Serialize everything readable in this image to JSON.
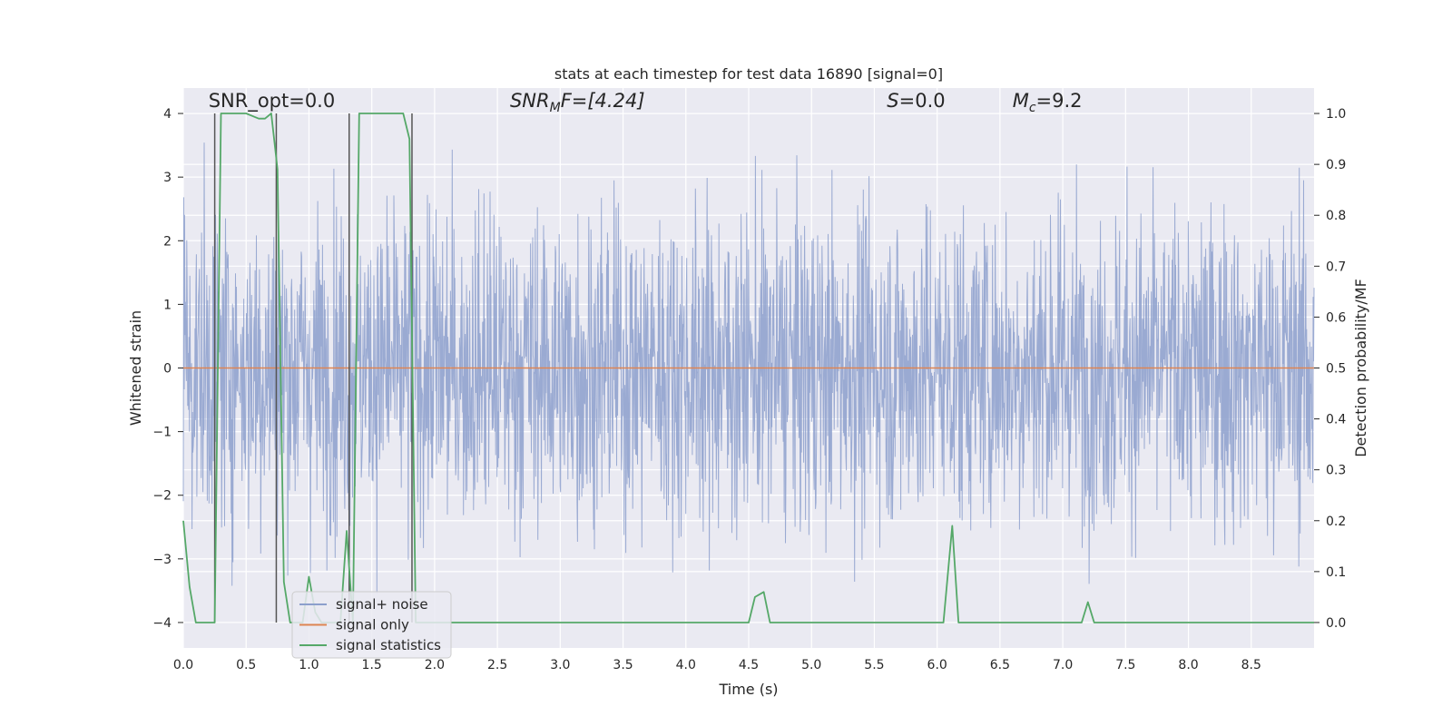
{
  "chart_data": {
    "type": "line",
    "title": "stats at each timestep for test data 16890 [signal=0]",
    "xlabel": "Time (s)",
    "ylabel": "Whitened strain",
    "y2label": "Detection probability/MF",
    "xlim": [
      0.0,
      9.0
    ],
    "ylim": [
      -4.4,
      4.4
    ],
    "y2lim": [
      -0.05,
      1.05
    ],
    "x_ticks": [
      "0.0",
      "0.5",
      "1.0",
      "1.5",
      "2.0",
      "2.5",
      "3.0",
      "3.5",
      "4.0",
      "4.5",
      "5.0",
      "5.5",
      "6.0",
      "6.5",
      "7.0",
      "7.5",
      "8.0",
      "8.5"
    ],
    "y_ticks": [
      "4",
      "3",
      "2",
      "1",
      "0",
      "−1",
      "−2",
      "−3",
      "−4"
    ],
    "y2_ticks": [
      "1.0",
      "0.9",
      "0.8",
      "0.7",
      "0.6",
      "0.5",
      "0.4",
      "0.3",
      "0.2",
      "0.1",
      "0.0"
    ],
    "grid": true,
    "legend_position": "lower-left",
    "annotations": {
      "snr_opt": "SNR_opt=0.0",
      "snr_mf_sym": "SNR",
      "snr_mf_sub": "M",
      "snr_mf_rest": "F=[4.24]",
      "s_sym": "S",
      "s_rest": "=0.0",
      "mc_sym": "M",
      "mc_sub": "c",
      "mc_rest": "=9.2"
    },
    "colors": {
      "background": "#eaeaf2",
      "grid": "#ffffff",
      "noise": "#8c9fcc",
      "signal_only": "#dd8452",
      "statistics": "#55a868",
      "vlines": "#555555"
    },
    "series": [
      {
        "name": "signal+ noise",
        "axis": "left",
        "style": "dense-noise",
        "band_sigma": 1.0,
        "typical_peak_abs": 2.4,
        "max_abs": 4.0
      },
      {
        "name": "signal only",
        "axis": "left",
        "x": [
          0.0,
          9.0
        ],
        "y": [
          0.0,
          0.0
        ]
      },
      {
        "name": "signal statistics",
        "axis": "right",
        "x": [
          0.0,
          0.05,
          0.1,
          0.2,
          0.25,
          0.3,
          0.5,
          0.6,
          0.65,
          0.7,
          0.75,
          0.8,
          0.85,
          0.9,
          0.95,
          1.0,
          1.05,
          1.1,
          1.25,
          1.3,
          1.35,
          1.4,
          1.75,
          1.8,
          1.85,
          1.9,
          4.5,
          4.55,
          4.62,
          4.67,
          6.05,
          6.12,
          6.17,
          7.15,
          7.2,
          7.25,
          7.32,
          9.0
        ],
        "y": [
          0.2,
          0.07,
          0.0,
          0.0,
          0.0,
          1.0,
          1.0,
          0.99,
          0.99,
          1.0,
          0.89,
          0.08,
          0.0,
          0.0,
          0.0,
          0.09,
          0.02,
          0.0,
          0.0,
          0.18,
          0.0,
          1.0,
          1.0,
          0.95,
          0.0,
          0.0,
          0.0,
          0.05,
          0.06,
          0.0,
          0.0,
          0.19,
          0.0,
          0.0,
          0.04,
          0.0,
          0.0,
          0.0
        ]
      }
    ],
    "vlines_x": [
      0.25,
      0.74,
      1.32,
      1.82
    ],
    "legend": [
      "signal+ noise",
      "signal only",
      "signal statistics"
    ]
  }
}
